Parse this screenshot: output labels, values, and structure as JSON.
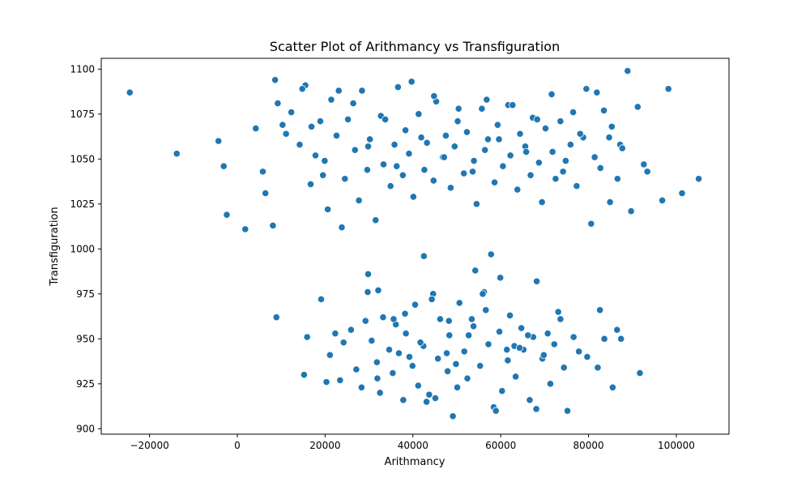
{
  "chart_data": {
    "type": "scatter",
    "title": "Scatter Plot of Arithmancy vs Transfiguration",
    "xlabel": "Arithmancy",
    "ylabel": "Transfiguration",
    "xlim": [
      -31000,
      112000
    ],
    "ylim": [
      897,
      1106
    ],
    "xticks": [
      -20000,
      0,
      20000,
      40000,
      60000,
      80000,
      100000
    ],
    "xtick_labels": [
      "−20000",
      "0",
      "20000",
      "40000",
      "60000",
      "80000",
      "100000"
    ],
    "yticks": [
      900,
      925,
      950,
      975,
      1000,
      1025,
      1050,
      1075,
      1100
    ],
    "ytick_labels": [
      "900",
      "925",
      "950",
      "975",
      "1000",
      "1025",
      "1050",
      "1075",
      "1100"
    ],
    "grid": false,
    "point_color": "#1f77b4",
    "series": [
      {
        "x": [
          -24500,
          -13800,
          -4300,
          -3100,
          -2400,
          1800,
          4200,
          5800,
          6400,
          8100,
          8600,
          9200,
          10300,
          11100,
          12300,
          14200,
          15500,
          16700,
          17800,
          18900,
          19900,
          20600,
          21400,
          22600,
          23800,
          24500,
          25200,
          26800,
          27700,
          28400,
          29600,
          30200,
          31500,
          32700,
          33300,
          34900,
          35800,
          36600,
          37700,
          38300,
          39100,
          40100,
          41300,
          42600,
          43200,
          44700,
          45300,
          46800,
          47500,
          48600,
          49500,
          50200,
          51600,
          52300,
          53900,
          54500,
          55700,
          56400,
          57100,
          58600,
          59300,
          60500,
          61700,
          62200,
          63800,
          64400,
          65600,
          66800,
          67300,
          68700,
          69400,
          70200,
          71800,
          72500,
          73600,
          74200,
          75900,
          76500,
          77300,
          78800,
          79500,
          80600,
          81400,
          82700,
          83500,
          84900,
          85300,
          86600,
          87200,
          88900,
          89700,
          91200,
          92600,
          93400,
          96800,
          98200,
          101300,
          105100,
          14800,
          16900,
          19500,
          23100,
          26400,
          29800,
          33700,
          36300,
          39700,
          41900,
          44800,
          47100,
          50400,
          53600,
          56800,
          59600,
          62700,
          65800,
          68300,
          71600,
          74800,
          78100,
          81900,
          84700,
          87700
        ],
        "y": [
          1087,
          1053,
          1060,
          1046,
          1019,
          1011,
          1067,
          1043,
          1031,
          1013,
          1094,
          1081,
          1069,
          1064,
          1076,
          1058,
          1091,
          1036,
          1052,
          1071,
          1049,
          1022,
          1083,
          1063,
          1012,
          1039,
          1072,
          1055,
          1027,
          1088,
          1044,
          1061,
          1016,
          1074,
          1047,
          1035,
          1058,
          1090,
          1041,
          1066,
          1053,
          1029,
          1075,
          1044,
          1059,
          1038,
          1082,
          1051,
          1063,
          1034,
          1057,
          1071,
          1042,
          1065,
          1049,
          1025,
          1078,
          1055,
          1061,
          1037,
          1069,
          1046,
          1080,
          1052,
          1033,
          1064,
          1057,
          1041,
          1073,
          1048,
          1026,
          1067,
          1054,
          1039,
          1071,
          1043,
          1058,
          1076,
          1035,
          1062,
          1089,
          1014,
          1051,
          1045,
          1077,
          1026,
          1068,
          1039,
          1058,
          1099,
          1021,
          1079,
          1047,
          1043,
          1027,
          1089,
          1031,
          1039,
          1089,
          1068,
          1041,
          1088,
          1081,
          1057,
          1072,
          1046,
          1093,
          1062,
          1085,
          1051,
          1078,
          1043,
          1083,
          1061,
          1080,
          1054,
          1072,
          1086,
          1049,
          1064,
          1087,
          1062,
          1056
        ]
      },
      {
        "x": [
          8900,
          15200,
          15900,
          19100,
          20300,
          21100,
          22300,
          23400,
          24200,
          25900,
          27100,
          28300,
          29200,
          29800,
          30600,
          31800,
          32500,
          33200,
          34600,
          35400,
          36100,
          37800,
          38400,
          39200,
          40500,
          41200,
          42400,
          43100,
          44600,
          45700,
          46200,
          47900,
          48300,
          49100,
          50600,
          51700,
          52400,
          53800,
          54200,
          55300,
          56600,
          57200,
          58400,
          59700,
          60300,
          61600,
          62100,
          63400,
          64700,
          65200,
          66600,
          67400,
          68100,
          69500,
          70700,
          71300,
          72200,
          73600,
          74400,
          75200,
          76600,
          77800,
          79700,
          82100,
          82600,
          83600,
          85500,
          86500,
          87400,
          91700,
          29700,
          32100,
          35600,
          38200,
          41700,
          44300,
          47700,
          50100,
          53400,
          56200,
          59900,
          63100,
          66200,
          69800,
          73100,
          42500,
          57800,
          61400,
          48200,
          52700,
          36800,
          39900,
          45100,
          55900,
          64300,
          68200,
          43700,
          31900,
          49800,
          58900
        ],
        "y": [
          962,
          930,
          951,
          972,
          926,
          941,
          953,
          927,
          948,
          955,
          933,
          923,
          960,
          986,
          949,
          937,
          920,
          962,
          944,
          931,
          958,
          916,
          953,
          940,
          969,
          924,
          946,
          915,
          975,
          939,
          961,
          932,
          952,
          907,
          970,
          943,
          928,
          957,
          988,
          935,
          966,
          947,
          912,
          954,
          921,
          938,
          963,
          929,
          956,
          944,
          916,
          951,
          911,
          939,
          953,
          925,
          947,
          961,
          934,
          910,
          951,
          943,
          940,
          934,
          966,
          950,
          923,
          955,
          950,
          931,
          976,
          977,
          961,
          964,
          948,
          972,
          942,
          923,
          961,
          976,
          984,
          946,
          952,
          941,
          965,
          996,
          997,
          944,
          960,
          952,
          942,
          935,
          917,
          975,
          945,
          982,
          919,
          928,
          936,
          910
        ]
      }
    ]
  }
}
